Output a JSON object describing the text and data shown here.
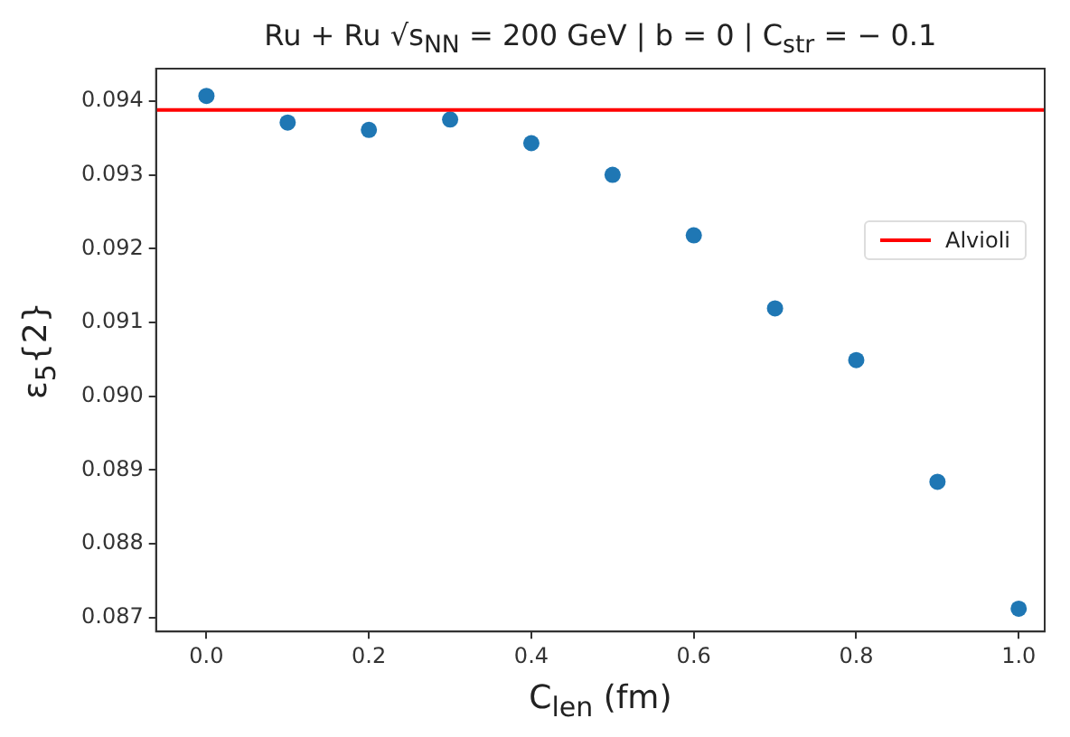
{
  "chart_data": {
    "type": "scatter",
    "title": "Ru + Ru √s$_{NN}$ = 200 GeV | b = 0 | C$_{str}$ = − 0.1",
    "xlabel": "C$_{len}$ (fm)",
    "ylabel": "ε$_{5}${2}",
    "x": [
      0.0,
      0.1,
      0.2,
      0.3,
      0.4,
      0.5,
      0.6,
      0.7,
      0.8,
      0.9,
      1.0
    ],
    "series": [
      {
        "color": "#1f77b4",
        "values": [
          0.09407,
          0.09371,
          0.09361,
          0.09375,
          0.09343,
          0.093,
          0.09218,
          0.09119,
          0.09049,
          0.08884,
          0.08712
        ]
      }
    ],
    "marker": "circle",
    "ref_lines": [
      {
        "axis": "y",
        "value": 0.09388,
        "label": "Alvioli",
        "color": "#ff0000"
      }
    ],
    "legend": "center right",
    "xlim": [
      -0.062,
      1.032
    ],
    "xticks": [
      {
        "value": 0,
        "label": "0.0"
      },
      0.2,
      0.4,
      0.6,
      0.8,
      {
        "value": 1,
        "label": "1.0"
      }
    ],
    "ylim": [
      0.08681,
      0.09444
    ],
    "yticks": [
      0.087,
      0.088,
      0.089,
      {
        "value": 0.09,
        "label": "0.090"
      },
      0.091,
      0.092,
      0.093,
      0.094
    ],
    "grid": false
  }
}
